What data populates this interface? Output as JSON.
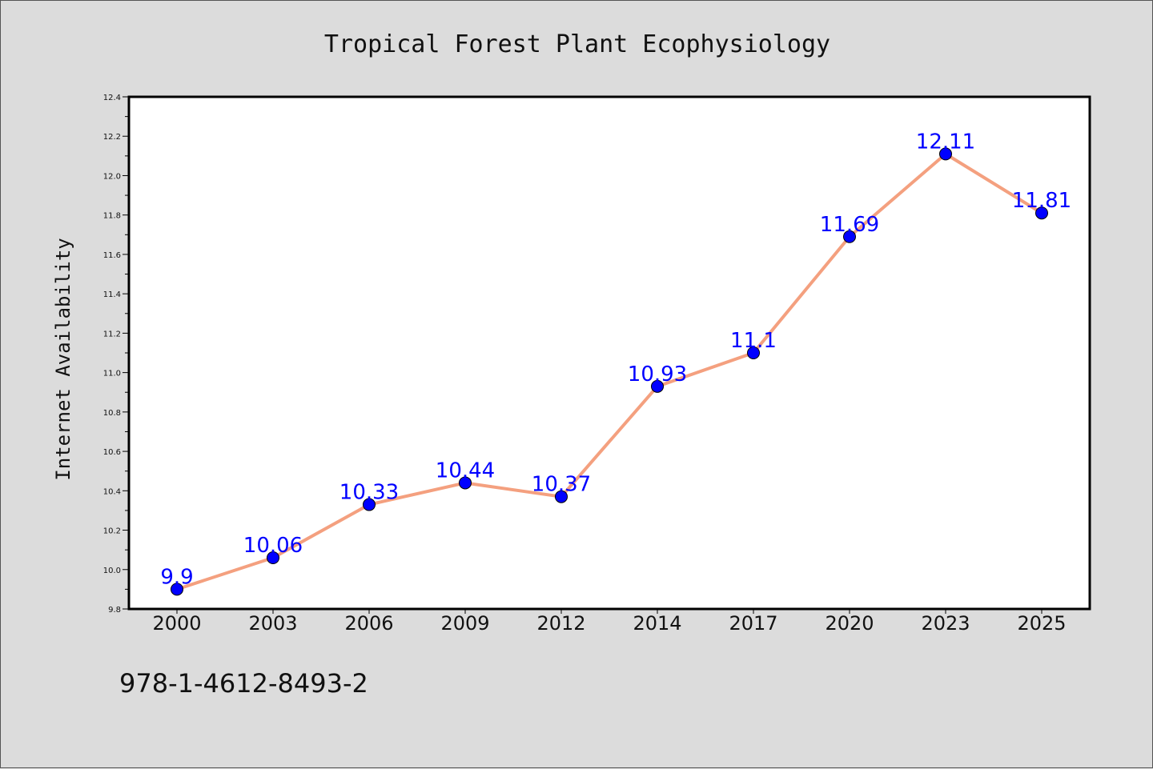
{
  "chart_data": {
    "type": "line",
    "title": "Tropical Forest Plant Ecophysiology",
    "ylabel": "Internet Availability",
    "xlabel": "",
    "categories": [
      "2000",
      "2003",
      "2006",
      "2009",
      "2012",
      "2014",
      "2017",
      "2020",
      "2023",
      "2025"
    ],
    "series": [
      {
        "values": [
          9.9,
          10.06,
          10.33,
          10.44,
          10.37,
          10.93,
          11.1,
          11.69,
          12.11,
          11.81
        ],
        "data_labels": [
          "9.9",
          "10.06",
          "10.33",
          "10.44",
          "10.37",
          "10.93",
          "11.1",
          "11.69",
          "12.11",
          "11.81"
        ]
      }
    ],
    "ylim": [
      9.8,
      12.4
    ],
    "yticks": [
      "9.8",
      "10.0",
      "10.2",
      "10.4",
      "10.6",
      "10.8",
      "11.0",
      "11.2",
      "11.4",
      "11.6",
      "11.8",
      "12.0",
      "12.2",
      "12.4"
    ],
    "grid": false,
    "legend": "none",
    "line_color": "#f4a07f",
    "marker_color": "#0000ff",
    "label_color": "#0000ff"
  },
  "footer": {
    "isbn": "978-1-4612-8493-2"
  }
}
